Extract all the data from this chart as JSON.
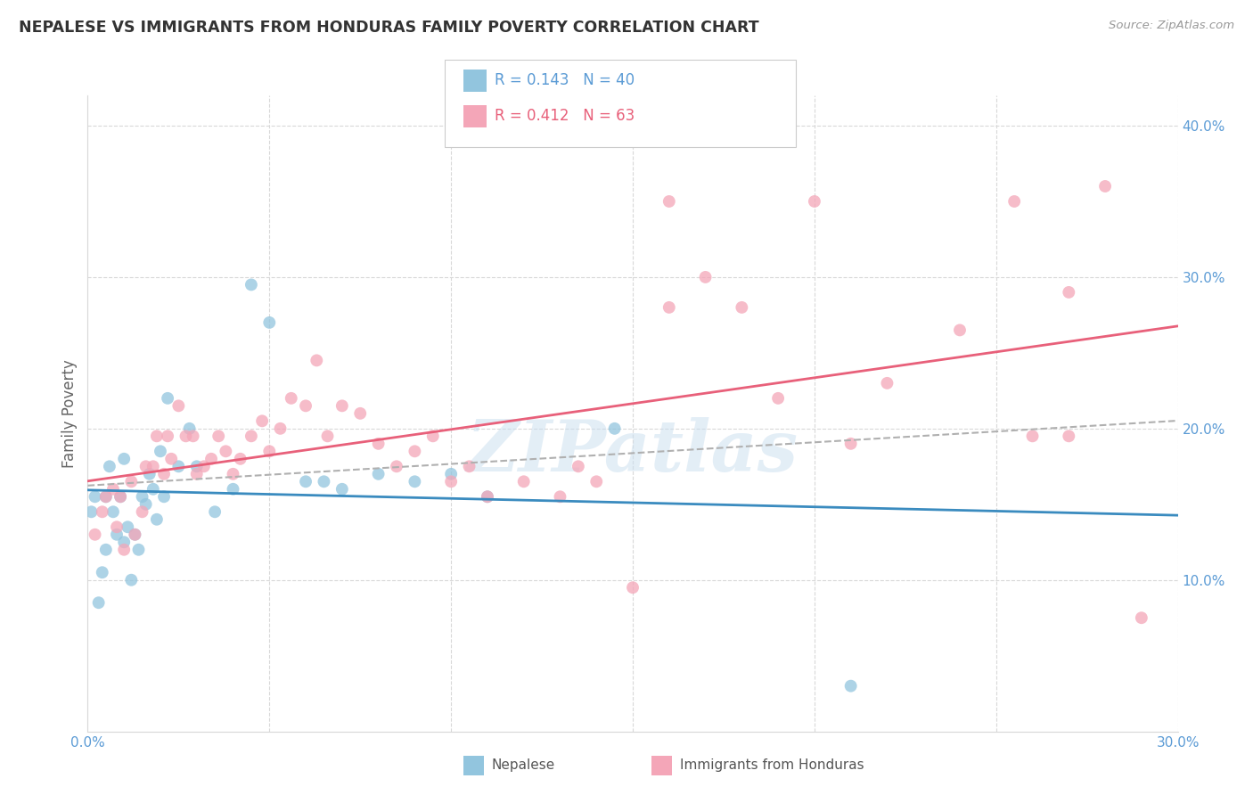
{
  "title": "NEPALESE VS IMMIGRANTS FROM HONDURAS FAMILY POVERTY CORRELATION CHART",
  "source": "Source: ZipAtlas.com",
  "ylabel": "Family Poverty",
  "xlim": [
    0.0,
    0.3
  ],
  "ylim": [
    0.0,
    0.42
  ],
  "watermark": "ZIPatlas",
  "legend1_label": "Nepalese",
  "legend2_label": "Immigrants from Honduras",
  "R1": 0.143,
  "N1": 40,
  "R2": 0.412,
  "N2": 63,
  "color_blue": "#92c5de",
  "color_pink": "#f4a6b8",
  "color_blue_line": "#3a8bbf",
  "color_pink_line": "#e8607a",
  "color_dashed": "#b0b0b0",
  "title_color": "#333333",
  "source_color": "#999999",
  "tick_color": "#5b9bd5",
  "ylabel_color": "#666666",
  "grid_color": "#d8d8d8",
  "blue_x": [
    0.001,
    0.002,
    0.003,
    0.004,
    0.005,
    0.005,
    0.006,
    0.007,
    0.008,
    0.009,
    0.01,
    0.01,
    0.011,
    0.012,
    0.013,
    0.014,
    0.015,
    0.016,
    0.017,
    0.018,
    0.019,
    0.02,
    0.021,
    0.022,
    0.025,
    0.028,
    0.03,
    0.035,
    0.04,
    0.045,
    0.05,
    0.06,
    0.065,
    0.07,
    0.08,
    0.09,
    0.1,
    0.11,
    0.145,
    0.21
  ],
  "blue_y": [
    0.145,
    0.155,
    0.085,
    0.105,
    0.12,
    0.155,
    0.175,
    0.145,
    0.13,
    0.155,
    0.125,
    0.18,
    0.135,
    0.1,
    0.13,
    0.12,
    0.155,
    0.15,
    0.17,
    0.16,
    0.14,
    0.185,
    0.155,
    0.22,
    0.175,
    0.2,
    0.175,
    0.145,
    0.16,
    0.295,
    0.27,
    0.165,
    0.165,
    0.16,
    0.17,
    0.165,
    0.17,
    0.155,
    0.2,
    0.03
  ],
  "pink_x": [
    0.002,
    0.004,
    0.005,
    0.007,
    0.008,
    0.009,
    0.01,
    0.012,
    0.013,
    0.015,
    0.016,
    0.018,
    0.019,
    0.021,
    0.022,
    0.023,
    0.025,
    0.027,
    0.029,
    0.03,
    0.032,
    0.034,
    0.036,
    0.038,
    0.04,
    0.042,
    0.045,
    0.048,
    0.05,
    0.053,
    0.056,
    0.06,
    0.063,
    0.066,
    0.07,
    0.075,
    0.08,
    0.085,
    0.09,
    0.095,
    0.1,
    0.105,
    0.11,
    0.12,
    0.13,
    0.14,
    0.15,
    0.16,
    0.17,
    0.18,
    0.19,
    0.2,
    0.21,
    0.22,
    0.24,
    0.255,
    0.26,
    0.27,
    0.28,
    0.135,
    0.16,
    0.27,
    0.29
  ],
  "pink_y": [
    0.13,
    0.145,
    0.155,
    0.16,
    0.135,
    0.155,
    0.12,
    0.165,
    0.13,
    0.145,
    0.175,
    0.175,
    0.195,
    0.17,
    0.195,
    0.18,
    0.215,
    0.195,
    0.195,
    0.17,
    0.175,
    0.18,
    0.195,
    0.185,
    0.17,
    0.18,
    0.195,
    0.205,
    0.185,
    0.2,
    0.22,
    0.215,
    0.245,
    0.195,
    0.215,
    0.21,
    0.19,
    0.175,
    0.185,
    0.195,
    0.165,
    0.175,
    0.155,
    0.165,
    0.155,
    0.165,
    0.095,
    0.35,
    0.3,
    0.28,
    0.22,
    0.35,
    0.19,
    0.23,
    0.265,
    0.35,
    0.195,
    0.195,
    0.36,
    0.175,
    0.28,
    0.29,
    0.075
  ]
}
